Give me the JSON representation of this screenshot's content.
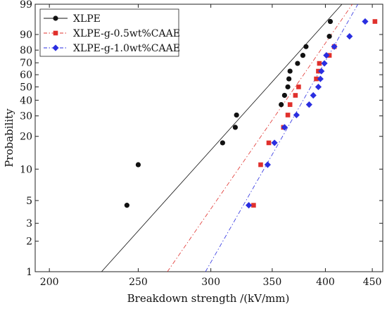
{
  "chart_data": {
    "type": "scatter",
    "title": "",
    "xlabel": "Breakdown strength /(kV/mm)",
    "ylabel": "Probability",
    "xlim": [
      193,
      462
    ],
    "x_scale": "log",
    "y_scale": "weibull",
    "ylim": [
      1,
      99
    ],
    "x_ticks": [
      200,
      250,
      300,
      350,
      400,
      450
    ],
    "y_ticks": [
      1,
      2,
      3,
      5,
      10,
      20,
      30,
      40,
      50,
      60,
      70,
      80,
      90,
      99
    ],
    "grid": false,
    "legend": "top-left",
    "series": [
      {
        "name": "XLPE",
        "color": "#111111",
        "marker": "circle",
        "line_style": "solid",
        "x": [
          243,
          250,
          309,
          319,
          320,
          358,
          361,
          364,
          365,
          366,
          373,
          378,
          381,
          404,
          405
        ],
        "y": [
          4.5,
          11,
          17.5,
          24,
          30.5,
          37,
          43.5,
          50,
          56.5,
          63,
          69.5,
          76,
          82.5,
          89,
          95.5
        ],
        "fit_line": [
          [
            228,
            1
          ],
          [
            417,
            99
          ]
        ]
      },
      {
        "name": "XLPE-g-0.5wt%CAAE",
        "color": "#e0302c",
        "marker": "square",
        "line_style": "dashdot",
        "x": [
          334,
          340,
          347,
          360,
          364,
          366,
          371,
          374,
          391,
          393,
          394,
          404,
          409,
          453
        ],
        "y": [
          4.5,
          11,
          17.5,
          24,
          30.5,
          37,
          43.5,
          50,
          56.5,
          63,
          69.5,
          76,
          82.5,
          95.5
        ],
        "fit_line": [
          [
            269,
            1
          ],
          [
            428,
            99
          ]
        ]
      },
      {
        "name": "XLPE-g-1.0wt%CAAE",
        "color": "#2a2ee0",
        "marker": "diamond",
        "line_style": "dashdot",
        "x": [
          330,
          346,
          352,
          361,
          372,
          384,
          388,
          393,
          395,
          396,
          399,
          401,
          409,
          425,
          442
        ],
        "y": [
          4.5,
          11,
          17.5,
          24,
          30.5,
          37,
          43.5,
          50,
          56.5,
          63,
          69.5,
          76,
          82.5,
          89,
          95.5
        ],
        "fit_line": [
          [
            296,
            1
          ],
          [
            434,
            99
          ]
        ]
      }
    ]
  }
}
